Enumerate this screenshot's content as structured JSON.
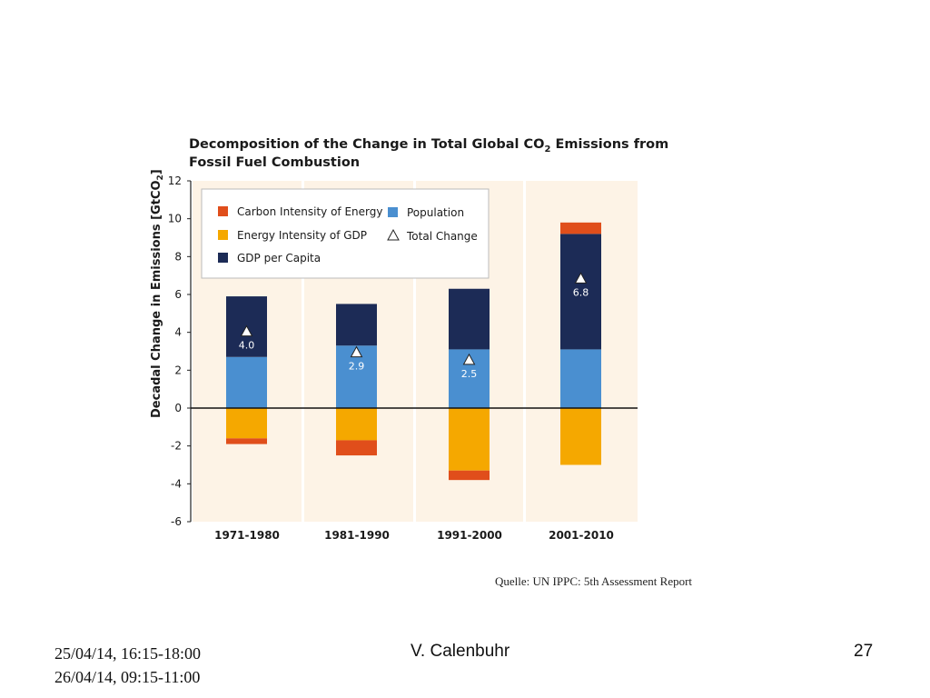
{
  "chart_data": {
    "type": "bar",
    "stacked": true,
    "title_line1": "Decomposition of the Change in Total Global CO",
    "title_sub": "2",
    "title_line1_end": " Emissions from",
    "title_line2": "Fossil Fuel Combustion",
    "ylabel_main": "Decadal Change in Emissions [GtCO",
    "ylabel_sub": "2",
    "ylabel_end": "]",
    "ylim": [
      -6,
      12
    ],
    "yticks": [
      "12",
      "10",
      "8",
      "6",
      "4",
      "2",
      "0",
      "-2",
      "-4",
      "-6"
    ],
    "ytick_values": [
      12,
      10,
      8,
      6,
      4,
      2,
      0,
      -2,
      -4,
      -6
    ],
    "categories": [
      "1971-1980",
      "1981-1990",
      "1991-2000",
      "2001-2010"
    ],
    "series": [
      {
        "name": "Carbon Intensity of Energy",
        "color": "#e04e1b",
        "values": [
          -0.3,
          -0.8,
          -0.5,
          0.6
        ]
      },
      {
        "name": "Energy Intensity of GDP",
        "color": "#f5a800",
        "values": [
          -1.6,
          -1.7,
          -3.3,
          -3.0
        ]
      },
      {
        "name": "GDP per Capita",
        "color": "#1c2b56",
        "values": [
          3.2,
          2.2,
          3.2,
          6.1
        ]
      },
      {
        "name": "Population",
        "color": "#4a8fd0",
        "values": [
          2.7,
          3.3,
          3.1,
          3.1
        ]
      }
    ],
    "total_change": {
      "name": "Total Change",
      "values": [
        4.0,
        2.9,
        2.5,
        6.8
      ],
      "labels": [
        "4.0",
        "2.9",
        "2.5",
        "6.8"
      ]
    },
    "legend": [
      {
        "label": "Carbon Intensity of Energy",
        "color": "#e04e1b",
        "marker": "square"
      },
      {
        "label": "Population",
        "color": "#4a8fd0",
        "marker": "square"
      },
      {
        "label": "Energy Intensity of GDP",
        "color": "#f5a800",
        "marker": "square"
      },
      {
        "label": "Total Change",
        "color": "#ffffff",
        "marker": "triangle"
      },
      {
        "label": "GDP per Capita",
        "color": "#1c2b56",
        "marker": "square"
      }
    ],
    "legend_position": "top-left",
    "panel_color": "#fdf3e6",
    "grid": false
  },
  "source": "Quelle: UN IPPC: 5th Assessment Report",
  "footer": {
    "date1": "25/04/14, 16:15-18:00",
    "date2": "26/04/14, 09:15-11:00",
    "author": "V. Calenbuhr",
    "page": "27"
  }
}
